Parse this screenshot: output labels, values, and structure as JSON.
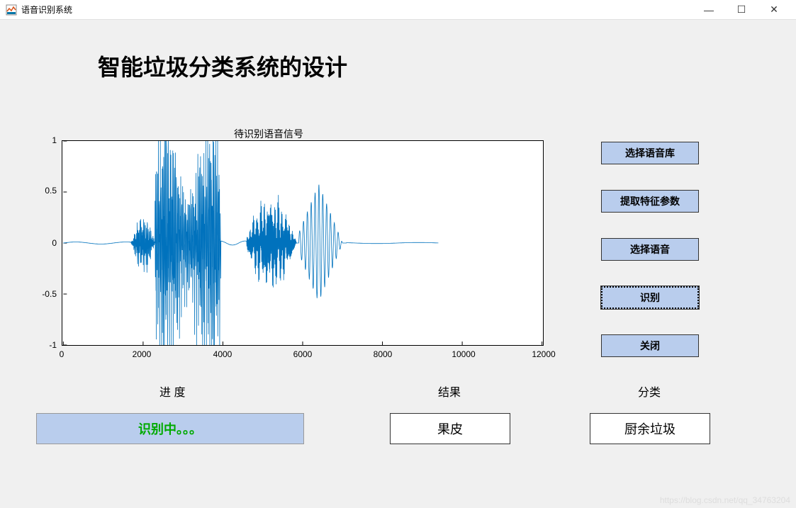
{
  "window": {
    "title": "语音识别系统",
    "controls": {
      "minimize": "—",
      "maximize": "☐",
      "close": "✕"
    }
  },
  "header": {
    "title": "智能垃圾分类系统的设计"
  },
  "chart": {
    "title": "待识别语音信号",
    "type": "line",
    "xlim": [
      0,
      12000
    ],
    "ylim": [
      -1,
      1
    ],
    "xticks": [
      0,
      2000,
      4000,
      6000,
      8000,
      10000,
      12000
    ],
    "yticks": [
      -1,
      -0.5,
      0,
      0.5,
      1
    ],
    "line_color": "#0072bd",
    "background_color": "#ffffff",
    "border_color": "#000000",
    "tick_fontsize": 12,
    "title_fontsize": 14,
    "waveform_segments": [
      {
        "start": 0,
        "end": 1700,
        "amplitude": 0.01,
        "freq": 0.5,
        "type": "flat"
      },
      {
        "start": 1700,
        "end": 2300,
        "amplitude": 0.25,
        "freq": 45,
        "type": "noise"
      },
      {
        "start": 2300,
        "end": 3950,
        "amplitude": 1.0,
        "freq": 55,
        "type": "burst"
      },
      {
        "start": 3950,
        "end": 4600,
        "amplitude": 0.02,
        "freq": 1,
        "type": "flat"
      },
      {
        "start": 4600,
        "end": 5900,
        "amplitude": 0.4,
        "freq": 50,
        "type": "envelope",
        "peak": 5200
      },
      {
        "start": 5900,
        "end": 7100,
        "amplitude": 0.58,
        "freq": 20,
        "type": "sine_decay",
        "peak": 6400
      },
      {
        "start": 7100,
        "end": 9400,
        "amplitude": 0.005,
        "freq": 0.3,
        "type": "flat"
      }
    ]
  },
  "buttons": {
    "select_lib": "选择语音库",
    "extract_features": "提取特征参数",
    "select_voice": "选择语音",
    "recognize": "识别",
    "close": "关闭"
  },
  "labels": {
    "progress": "进       度",
    "result": "结果",
    "category": "分类"
  },
  "status": {
    "progress": "识别中。。。",
    "result": "果皮",
    "category": "厨余垃圾"
  },
  "watermark": "https://blog.csdn.net/qq_34763204",
  "colors": {
    "button_bg": "#b9cded",
    "progress_text": "#00aa00",
    "window_bg": "#f0f0f0"
  }
}
